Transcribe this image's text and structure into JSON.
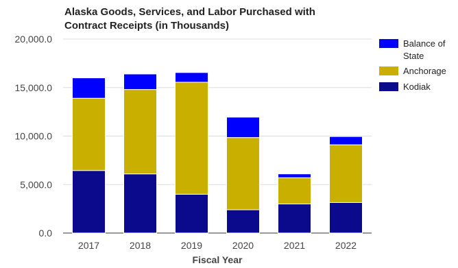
{
  "chart_data": {
    "type": "bar",
    "stacked": true,
    "title_lines": [
      "Alaska Goods, Services, and Labor Purchased with",
      "Contract Receipts (in Thousands)"
    ],
    "xlabel": "Fiscal Year",
    "ylabel": "",
    "categories": [
      "2017",
      "2018",
      "2019",
      "2020",
      "2021",
      "2022"
    ],
    "ylim": [
      0,
      20000
    ],
    "yticks": [
      "0.0",
      "5,000.0",
      "10,000.0",
      "15,000.0",
      "20,000.0"
    ],
    "ytick_values": [
      0,
      5000,
      10000,
      15000,
      20000
    ],
    "grid": true,
    "legend_position": "right",
    "series": [
      {
        "name": "Kodiak",
        "color": "#0c0a8c",
        "values": [
          6450,
          6100,
          4000,
          2400,
          3000,
          3150
        ]
      },
      {
        "name": "Anchorage",
        "color": "#c9b000",
        "values": [
          7450,
          8700,
          11550,
          7450,
          2700,
          5950
        ]
      },
      {
        "name": "Balance of State",
        "legend_lines": [
          "Balance of",
          "State"
        ],
        "color": "#0000ff",
        "values": [
          2100,
          1600,
          1000,
          2100,
          400,
          850
        ]
      }
    ]
  }
}
